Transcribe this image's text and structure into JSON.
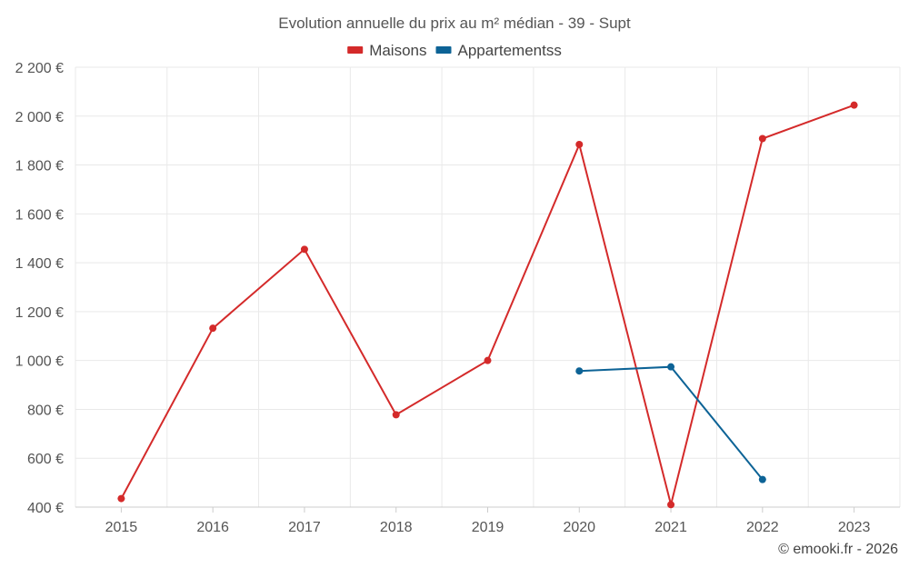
{
  "chart_data": {
    "type": "line",
    "title": "Evolution annuelle du prix au m² médian - 39 - Supt",
    "categories": [
      "2015",
      "2016",
      "2017",
      "2018",
      "2019",
      "2020",
      "2021",
      "2022",
      "2023"
    ],
    "series": [
      {
        "name": "Maisons",
        "color": "#d42a2a",
        "values": [
          435,
          1132,
          1455,
          778,
          1000,
          1884,
          410,
          1908,
          2045
        ]
      },
      {
        "name": "Appartementss",
        "color": "#0d6396",
        "values": [
          null,
          null,
          null,
          null,
          null,
          957,
          974,
          513,
          null
        ]
      }
    ],
    "ylim": [
      400,
      2200
    ],
    "yticks": [
      400,
      600,
      800,
      1000,
      1200,
      1400,
      1600,
      1800,
      2000,
      2200
    ],
    "ytick_labels": [
      "400 €",
      "600 €",
      "800 €",
      "1 000 €",
      "1 200 €",
      "1 400 €",
      "1 600 €",
      "1 800 €",
      "2 000 €",
      "2 200 €"
    ],
    "xlabel": "",
    "ylabel": "",
    "grid": true,
    "legend": "top-center"
  },
  "credit": "© emooki.fr - 2026"
}
